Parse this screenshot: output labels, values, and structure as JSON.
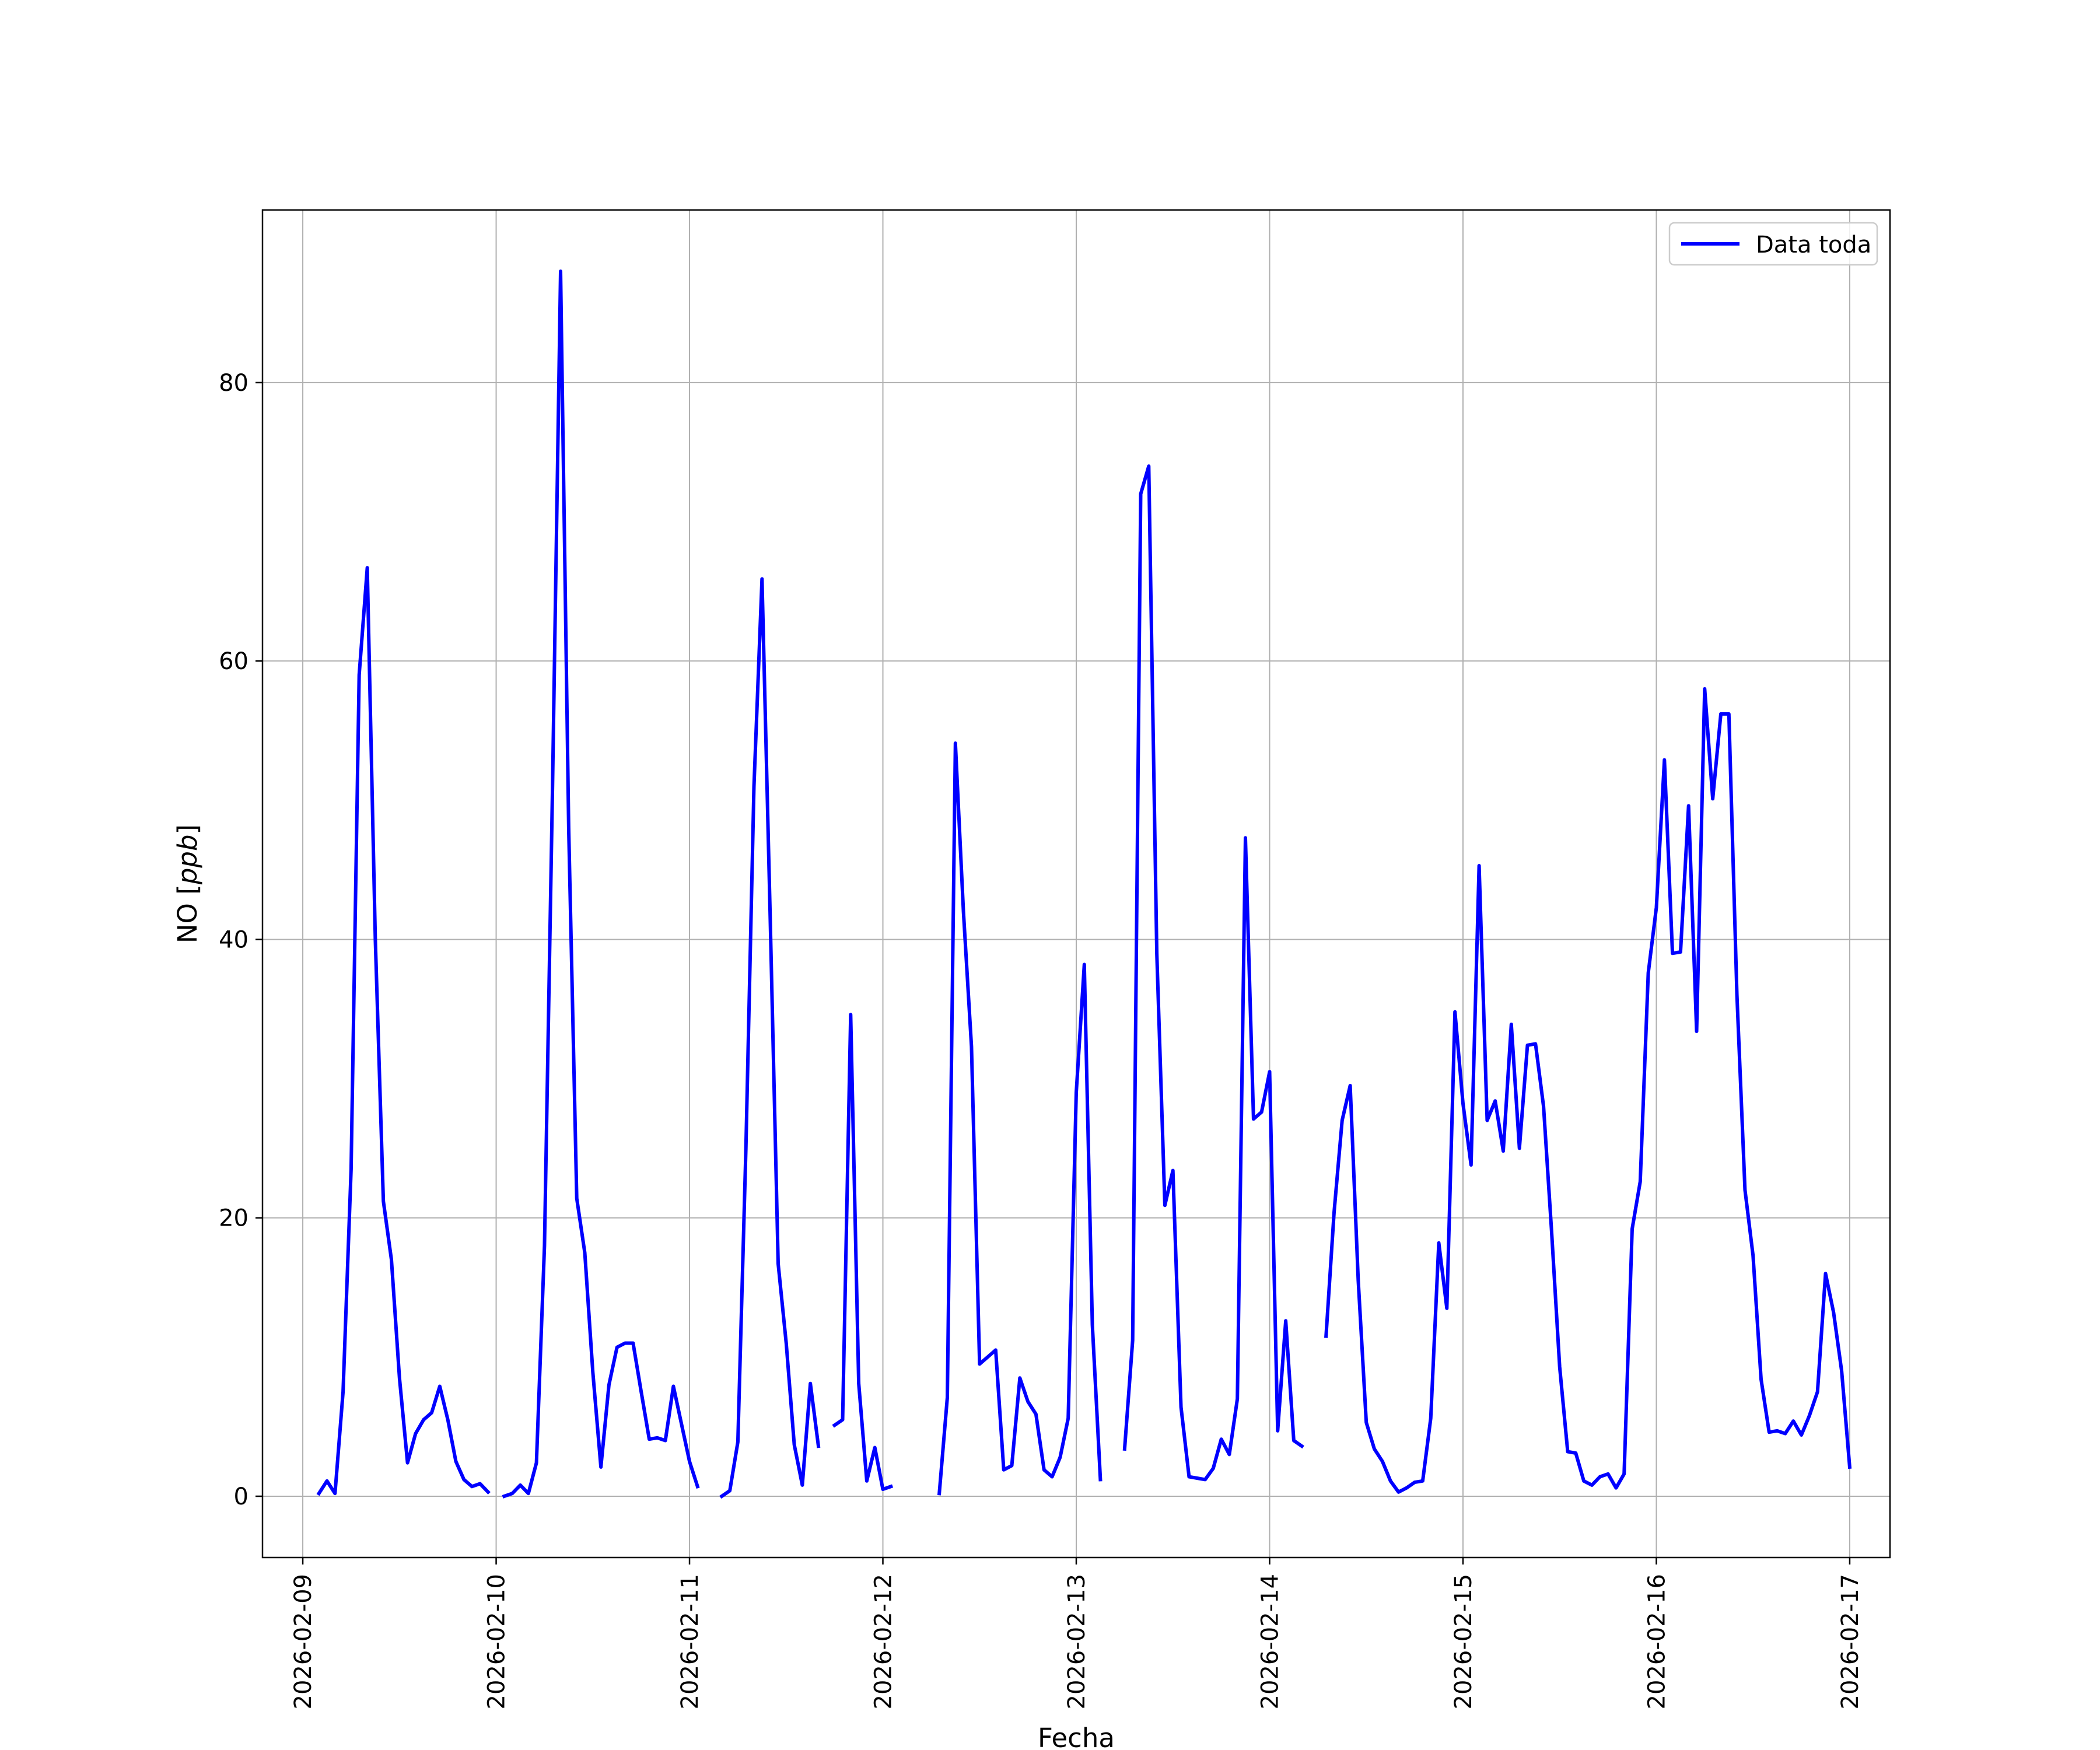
{
  "chart_data": {
    "type": "line",
    "title": "",
    "xlabel": "Fecha",
    "ylabel_main": "NO [",
    "ylabel_unit": "ppb",
    "ylabel_end": "]",
    "xlim": [
      "2026-02-08T19:00",
      "2026-02-17T05:00"
    ],
    "ylim": [
      -4.4,
      92.4
    ],
    "x_ticks": [
      "2026-02-09",
      "2026-02-10",
      "2026-02-11",
      "2026-02-12",
      "2026-02-13",
      "2026-02-14",
      "2026-02-15",
      "2026-02-16",
      "2026-02-17"
    ],
    "y_ticks": [
      0,
      20,
      40,
      60,
      80
    ],
    "grid": true,
    "legend_position": "upper-right",
    "series": [
      {
        "name": "Data toda",
        "color": "#0000ff",
        "segments": [
          [
            [
              "2026-02-09T02:00",
              0.2
            ],
            [
              "2026-02-09T03:00",
              1.1
            ],
            [
              "2026-02-09T04:00",
              0.2
            ],
            [
              "2026-02-09T05:00",
              7.5
            ],
            [
              "2026-02-09T06:00",
              23.5
            ],
            [
              "2026-02-09T07:00",
              59.0
            ],
            [
              "2026-02-09T08:00",
              66.7
            ],
            [
              "2026-02-09T09:00",
              40.0
            ],
            [
              "2026-02-09T10:00",
              21.2
            ],
            [
              "2026-02-09T11:00",
              17.0
            ],
            [
              "2026-02-09T12:00",
              8.5
            ],
            [
              "2026-02-09T13:00",
              2.4
            ],
            [
              "2026-02-09T14:00",
              4.5
            ],
            [
              "2026-02-09T15:00",
              5.5
            ],
            [
              "2026-02-09T16:00",
              6.0
            ],
            [
              "2026-02-09T17:00",
              7.9
            ],
            [
              "2026-02-09T18:00",
              5.5
            ],
            [
              "2026-02-09T19:00",
              2.5
            ],
            [
              "2026-02-09T20:00",
              1.2
            ],
            [
              "2026-02-09T21:00",
              0.7
            ],
            [
              "2026-02-09T22:00",
              0.9
            ],
            [
              "2026-02-09T23:00",
              0.3
            ]
          ],
          [
            [
              "2026-02-10T01:00",
              0.0
            ],
            [
              "2026-02-10T02:00",
              0.2
            ],
            [
              "2026-02-10T03:00",
              0.8
            ],
            [
              "2026-02-10T04:00",
              0.2
            ],
            [
              "2026-02-10T05:00",
              2.4
            ],
            [
              "2026-02-10T06:00",
              18.0
            ],
            [
              "2026-02-10T07:00",
              51.0
            ],
            [
              "2026-02-10T08:00",
              88.0
            ],
            [
              "2026-02-10T09:00",
              48.0
            ],
            [
              "2026-02-10T10:00",
              21.4
            ],
            [
              "2026-02-10T11:00",
              17.5
            ],
            [
              "2026-02-10T12:00",
              8.9
            ],
            [
              "2026-02-10T13:00",
              2.1
            ],
            [
              "2026-02-10T14:00",
              8.0
            ],
            [
              "2026-02-10T15:00",
              10.7
            ],
            [
              "2026-02-10T16:00",
              11.0
            ],
            [
              "2026-02-10T17:00",
              11.0
            ],
            [
              "2026-02-10T18:00",
              7.5
            ],
            [
              "2026-02-10T19:00",
              4.1
            ],
            [
              "2026-02-10T20:00",
              4.2
            ],
            [
              "2026-02-10T21:00",
              4.0
            ],
            [
              "2026-02-10T22:00",
              7.9
            ],
            [
              "2026-02-10T23:00",
              5.2
            ],
            [
              "2026-02-11T00:00",
              2.5
            ],
            [
              "2026-02-11T01:00",
              0.7
            ]
          ],
          [
            [
              "2026-02-11T04:00",
              0.0
            ],
            [
              "2026-02-11T05:00",
              0.4
            ],
            [
              "2026-02-11T06:00",
              3.9
            ],
            [
              "2026-02-11T07:00",
              25.0
            ],
            [
              "2026-02-11T08:00",
              51.0
            ],
            [
              "2026-02-11T09:00",
              65.9
            ],
            [
              "2026-02-11T10:00",
              42.0
            ],
            [
              "2026-02-11T11:00",
              16.7
            ],
            [
              "2026-02-11T12:00",
              11.0
            ],
            [
              "2026-02-11T13:00",
              3.7
            ],
            [
              "2026-02-11T14:00",
              0.8
            ],
            [
              "2026-02-11T15:00",
              8.1
            ],
            [
              "2026-02-11T16:00",
              3.6
            ]
          ],
          [
            [
              "2026-02-11T18:00",
              5.1
            ],
            [
              "2026-02-11T19:00",
              5.5
            ],
            [
              "2026-02-11T20:00",
              34.6
            ],
            [
              "2026-02-11T21:00",
              8.1
            ],
            [
              "2026-02-11T22:00",
              1.1
            ],
            [
              "2026-02-11T23:00",
              3.5
            ],
            [
              "2026-02-12T00:00",
              0.5
            ],
            [
              "2026-02-12T01:00",
              0.7
            ]
          ],
          [
            [
              "2026-02-12T07:00",
              0.2
            ],
            [
              "2026-02-12T08:00",
              7.1
            ],
            [
              "2026-02-12T09:00",
              54.1
            ],
            [
              "2026-02-12T10:00",
              42.0
            ],
            [
              "2026-02-12T11:00",
              32.3
            ],
            [
              "2026-02-12T12:00",
              9.5
            ],
            [
              "2026-02-12T13:00",
              10.0
            ],
            [
              "2026-02-12T14:00",
              10.5
            ],
            [
              "2026-02-12T15:00",
              1.9
            ],
            [
              "2026-02-12T16:00",
              2.2
            ],
            [
              "2026-02-12T17:00",
              8.5
            ],
            [
              "2026-02-12T18:00",
              6.8
            ],
            [
              "2026-02-12T19:00",
              5.9
            ],
            [
              "2026-02-12T20:00",
              1.9
            ],
            [
              "2026-02-12T21:00",
              1.4
            ],
            [
              "2026-02-12T22:00",
              2.8
            ],
            [
              "2026-02-12T23:00",
              5.6
            ],
            [
              "2026-02-13T00:00",
              29.0
            ],
            [
              "2026-02-13T01:00",
              38.2
            ],
            [
              "2026-02-13T02:00",
              12.3
            ],
            [
              "2026-02-13T03:00",
              1.2
            ]
          ],
          [
            [
              "2026-02-13T06:00",
              3.4
            ],
            [
              "2026-02-13T07:00",
              11.2
            ],
            [
              "2026-02-13T08:00",
              72.0
            ],
            [
              "2026-02-13T09:00",
              74.0
            ],
            [
              "2026-02-13T10:00",
              39.0
            ],
            [
              "2026-02-13T11:00",
              20.9
            ],
            [
              "2026-02-13T12:00",
              23.4
            ],
            [
              "2026-02-13T13:00",
              6.4
            ],
            [
              "2026-02-13T14:00",
              1.4
            ],
            [
              "2026-02-13T15:00",
              1.3
            ],
            [
              "2026-02-13T16:00",
              1.2
            ],
            [
              "2026-02-13T17:00",
              2.0
            ],
            [
              "2026-02-13T18:00",
              4.1
            ],
            [
              "2026-02-13T19:00",
              3.0
            ],
            [
              "2026-02-13T20:00",
              7.0
            ],
            [
              "2026-02-13T21:00",
              47.3
            ],
            [
              "2026-02-13T22:00",
              27.1
            ],
            [
              "2026-02-13T23:00",
              27.6
            ],
            [
              "2026-02-14T00:00",
              30.5
            ],
            [
              "2026-02-14T01:00",
              4.7
            ],
            [
              "2026-02-14T02:00",
              12.6
            ],
            [
              "2026-02-14T03:00",
              4.0
            ],
            [
              "2026-02-14T04:00",
              3.6
            ]
          ],
          [
            [
              "2026-02-14T07:00",
              11.5
            ],
            [
              "2026-02-14T08:00",
              20.4
            ],
            [
              "2026-02-14T09:00",
              27.0
            ],
            [
              "2026-02-14T10:00",
              29.5
            ],
            [
              "2026-02-14T11:00",
              15.5
            ],
            [
              "2026-02-14T12:00",
              5.3
            ],
            [
              "2026-02-14T13:00",
              3.4
            ],
            [
              "2026-02-14T14:00",
              2.5
            ],
            [
              "2026-02-14T15:00",
              1.1
            ],
            [
              "2026-02-14T16:00",
              0.3
            ],
            [
              "2026-02-14T17:00",
              0.6
            ],
            [
              "2026-02-14T18:00",
              1.0
            ],
            [
              "2026-02-14T19:00",
              1.1
            ],
            [
              "2026-02-14T20:00",
              5.6
            ],
            [
              "2026-02-14T21:00",
              18.2
            ],
            [
              "2026-02-14T22:00",
              13.5
            ],
            [
              "2026-02-14T23:00",
              34.8
            ],
            [
              "2026-02-15T00:00",
              28.2
            ],
            [
              "2026-02-15T01:00",
              23.8
            ],
            [
              "2026-02-15T02:00",
              45.3
            ],
            [
              "2026-02-15T03:00",
              27.0
            ],
            [
              "2026-02-15T04:00",
              28.4
            ],
            [
              "2026-02-15T05:00",
              24.8
            ],
            [
              "2026-02-15T06:00",
              33.9
            ],
            [
              "2026-02-15T07:00",
              25.0
            ],
            [
              "2026-02-15T08:00",
              32.4
            ],
            [
              "2026-02-15T09:00",
              32.5
            ],
            [
              "2026-02-15T10:00",
              28.0
            ],
            [
              "2026-02-15T11:00",
              19.0
            ],
            [
              "2026-02-15T12:00",
              9.3
            ],
            [
              "2026-02-15T13:00",
              3.2
            ],
            [
              "2026-02-15T14:00",
              3.1
            ],
            [
              "2026-02-15T15:00",
              1.1
            ],
            [
              "2026-02-15T16:00",
              0.8
            ],
            [
              "2026-02-15T17:00",
              1.4
            ],
            [
              "2026-02-15T18:00",
              1.6
            ],
            [
              "2026-02-15T19:00",
              0.6
            ],
            [
              "2026-02-15T20:00",
              1.6
            ],
            [
              "2026-02-15T21:00",
              19.2
            ],
            [
              "2026-02-15T22:00",
              22.6
            ],
            [
              "2026-02-15T23:00",
              37.6
            ],
            [
              "2026-02-16T00:00",
              42.3
            ],
            [
              "2026-02-16T01:00",
              52.9
            ],
            [
              "2026-02-16T02:00",
              39.0
            ],
            [
              "2026-02-16T03:00",
              39.1
            ],
            [
              "2026-02-16T04:00",
              49.6
            ],
            [
              "2026-02-16T05:00",
              33.4
            ],
            [
              "2026-02-16T06:00",
              58.0
            ],
            [
              "2026-02-16T07:00",
              50.1
            ],
            [
              "2026-02-16T08:00",
              56.2
            ],
            [
              "2026-02-16T09:00",
              56.2
            ],
            [
              "2026-02-16T10:00",
              36.0
            ],
            [
              "2026-02-16T11:00",
              22.0
            ],
            [
              "2026-02-16T12:00",
              17.3
            ],
            [
              "2026-02-16T13:00",
              8.4
            ],
            [
              "2026-02-16T14:00",
              4.6
            ],
            [
              "2026-02-16T15:00",
              4.7
            ],
            [
              "2026-02-16T16:00",
              4.5
            ],
            [
              "2026-02-16T17:00",
              5.4
            ],
            [
              "2026-02-16T18:00",
              4.4
            ],
            [
              "2026-02-16T19:00",
              5.8
            ],
            [
              "2026-02-16T20:00",
              7.5
            ],
            [
              "2026-02-16T21:00",
              16.0
            ],
            [
              "2026-02-16T22:00",
              13.2
            ],
            [
              "2026-02-16T23:00",
              9.0
            ],
            [
              "2026-02-17T00:00",
              2.1
            ]
          ]
        ]
      }
    ]
  }
}
